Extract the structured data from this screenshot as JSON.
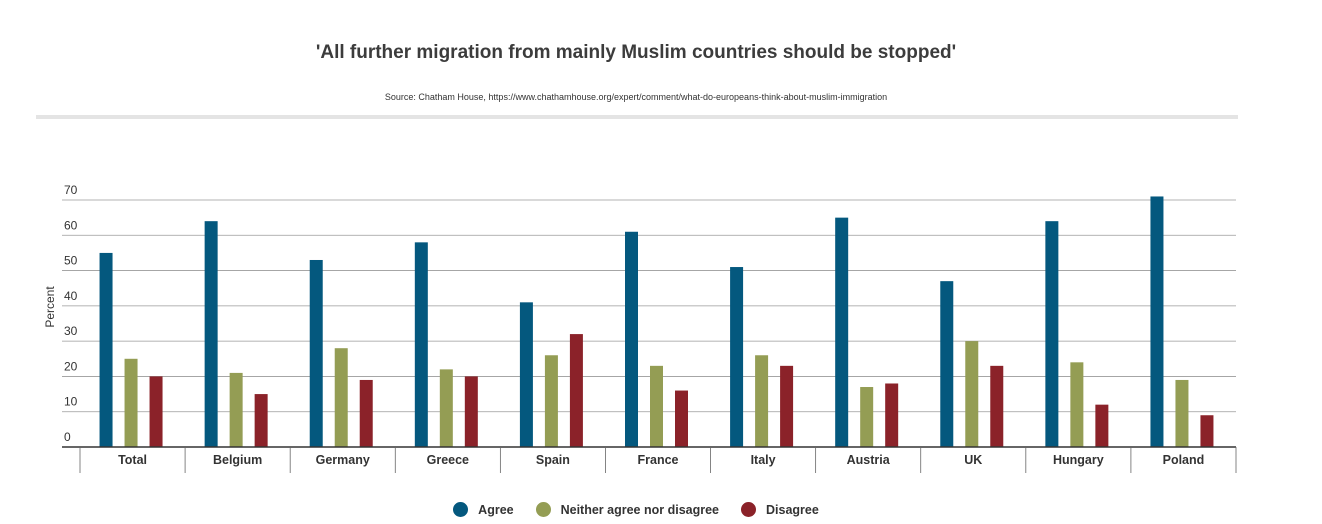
{
  "chart_data": {
    "type": "bar",
    "title": "'All further migration from mainly Muslim countries should be stopped'",
    "source": "Source: Chatham House, https://www.chathamhouse.org/expert/comment/what-do-europeans-think-about-muslim-immigration",
    "xlabel": "",
    "ylabel": "Percent",
    "ylim": [
      0,
      70
    ],
    "yticks": [
      0,
      10,
      20,
      30,
      40,
      50,
      60,
      70
    ],
    "grid": true,
    "legend_position": "bottom",
    "categories": [
      "Total",
      "Belgium",
      "Germany",
      "Greece",
      "Spain",
      "France",
      "Italy",
      "Austria",
      "UK",
      "Hungary",
      "Poland"
    ],
    "series": [
      {
        "name": "Agree",
        "color": "#04587e",
        "values": [
          55,
          64,
          53,
          58,
          41,
          61,
          51,
          65,
          47,
          64,
          71
        ]
      },
      {
        "name": "Neither agree nor disagree",
        "color": "#949d54",
        "values": [
          25,
          21,
          28,
          22,
          26,
          23,
          26,
          17,
          30,
          24,
          19
        ]
      },
      {
        "name": "Disagree",
        "color": "#8b2229",
        "values": [
          20,
          15,
          19,
          20,
          32,
          16,
          23,
          18,
          23,
          12,
          9
        ]
      }
    ]
  }
}
